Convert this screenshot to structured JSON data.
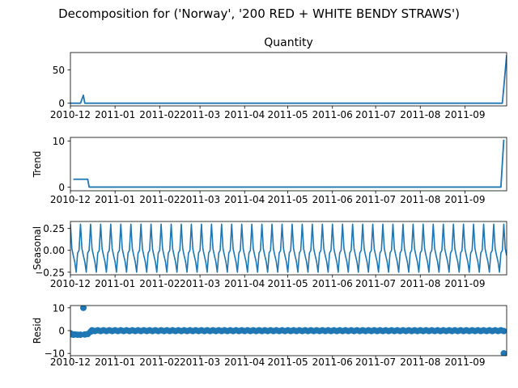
{
  "suptitle": "Decomposition for ('Norway', '200 RED + WHITE BENDY STRAWS')",
  "colors": {
    "line": "#1f77b4",
    "axis": "#000000"
  },
  "chart_data": {
    "type": "line",
    "x_tick_labels": [
      "2010-12",
      "2011-01",
      "2011-02",
      "2011-03",
      "2011-04",
      "2011-05",
      "2011-06",
      "2011-07",
      "2011-08",
      "2011-09"
    ],
    "x_range": [
      "2010-12-01",
      "2011-09-30"
    ],
    "panels": [
      {
        "key": "observed",
        "title": "Quantity",
        "ylabel": "",
        "style": "line",
        "ylim": [
          -4,
          76
        ],
        "yticks": [
          0,
          50
        ],
        "ytick_labels": [
          "0",
          "50"
        ],
        "points": [
          [
            "2010-12-01",
            0
          ],
          [
            "2010-12-08",
            0
          ],
          [
            "2010-12-10",
            12
          ],
          [
            "2010-12-11",
            0
          ],
          [
            "2011-09-27",
            0
          ],
          [
            "2011-09-30",
            72
          ]
        ]
      },
      {
        "key": "trend",
        "title": "",
        "ylabel": "Trend",
        "style": "line",
        "ylim": [
          -0.8,
          10.8
        ],
        "yticks": [
          0,
          10
        ],
        "ytick_labels": [
          "0",
          "10"
        ],
        "points": [
          [
            "2010-12-03",
            1.7
          ],
          [
            "2010-12-13",
            1.7
          ],
          [
            "2010-12-14",
            0
          ],
          [
            "2011-09-26",
            0
          ],
          [
            "2011-09-28",
            10.3
          ]
        ]
      },
      {
        "key": "seasonal",
        "title": "",
        "ylabel": "Seasonal",
        "style": "periodic",
        "period_days": 7,
        "ylim": [
          -0.28,
          0.33
        ],
        "yticks": [
          -0.25,
          0,
          0.25
        ],
        "ytick_labels": [
          "−0.25",
          "0.00",
          "0.25"
        ],
        "cycle_values": [
          0.3,
          0.02,
          -0.06,
          -0.13,
          -0.25,
          -0.03,
          0.0
        ]
      },
      {
        "key": "resid",
        "title": "",
        "ylabel": "Resid",
        "style": "scatter",
        "ylim": [
          -11,
          11
        ],
        "yticks": [
          -10,
          0,
          10
        ],
        "ytick_labels": [
          "−10",
          "0",
          "10"
        ],
        "points": [
          [
            "2010-12-01",
            -1.2
          ],
          [
            "2010-12-02",
            -1.6
          ],
          [
            "2010-12-03",
            -1.8
          ],
          [
            "2010-12-04",
            -1.7
          ],
          [
            "2010-12-06",
            -1.8
          ],
          [
            "2010-12-08",
            -1.8
          ],
          [
            "2010-12-10",
            10.0
          ],
          [
            "2010-12-11",
            -1.7
          ],
          [
            "2010-12-13",
            -1.5
          ],
          [
            "2010-12-15",
            -0.5
          ],
          [
            "2011-09-28",
            -10.0
          ]
        ]
      }
    ]
  }
}
